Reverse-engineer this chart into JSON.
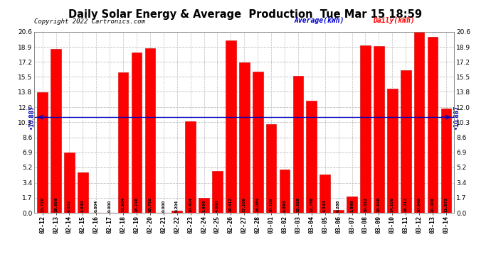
{
  "title": "Daily Solar Energy & Average  Production  Tue Mar 15 18:59",
  "copyright": "Copyright 2022 Cartronics.com",
  "legend_average": "Average(kWh)",
  "legend_daily": "Daily(kWh)",
  "average_value": 10.887,
  "categories": [
    "02-12",
    "02-13",
    "02-14",
    "02-15",
    "02-16",
    "02-17",
    "02-18",
    "02-19",
    "02-20",
    "02-21",
    "02-22",
    "02-23",
    "02-24",
    "02-25",
    "02-26",
    "02-27",
    "02-28",
    "03-01",
    "03-02",
    "03-03",
    "03-04",
    "03-05",
    "03-06",
    "03-07",
    "03-08",
    "03-09",
    "03-10",
    "03-11",
    "03-12",
    "03-13",
    "03-14"
  ],
  "values": [
    13.728,
    18.696,
    6.852,
    4.64,
    0.004,
    0.0,
    15.984,
    18.248,
    18.76,
    0.0,
    0.204,
    10.404,
    1.696,
    4.8,
    19.612,
    17.1,
    16.084,
    10.1,
    4.896,
    15.628,
    12.768,
    4.344,
    0.288,
    1.868,
    19.032,
    18.948,
    14.1,
    16.212,
    20.648,
    20.008,
    11.872
  ],
  "bar_color": "#ff0000",
  "avg_line_color": "#0000bb",
  "title_color": "#000000",
  "copyright_color": "#000000",
  "legend_avg_color": "#0000cc",
  "legend_daily_color": "#ff0000",
  "yticks": [
    0.0,
    1.7,
    3.4,
    5.2,
    6.9,
    8.6,
    10.3,
    12.0,
    13.8,
    15.5,
    17.2,
    18.9,
    20.6
  ],
  "ylim": [
    0.0,
    20.6
  ],
  "background_color": "#ffffff",
  "grid_color": "#bbbbbb",
  "avg_label": "10.887"
}
